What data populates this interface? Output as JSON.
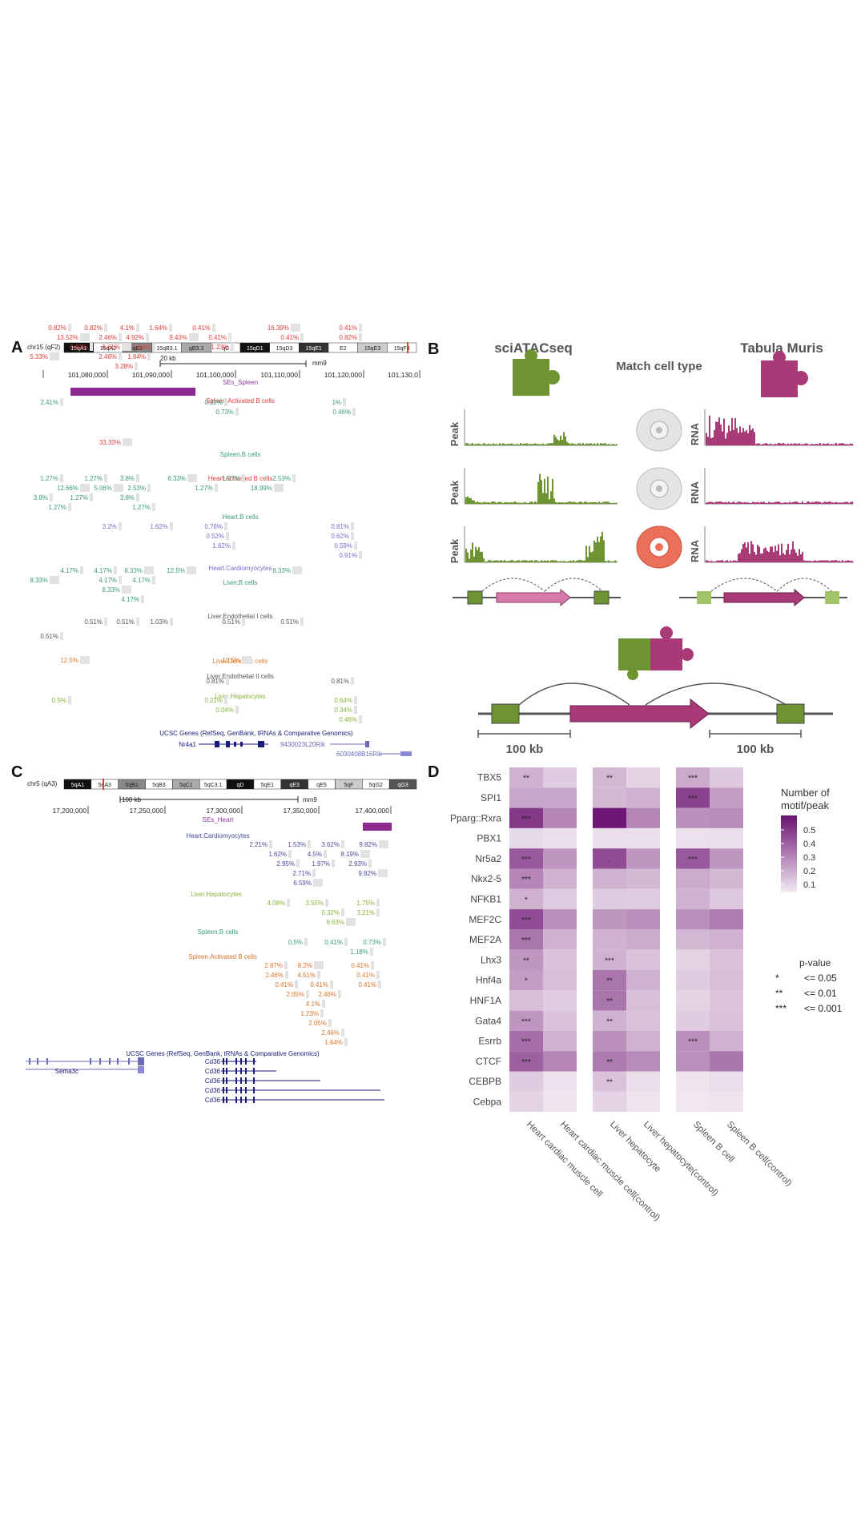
{
  "panelA": {
    "letter": "A",
    "chrom": "chr15 (qF2)",
    "bands": [
      "15qA1",
      "15qA2",
      "qB1",
      "15qB3.1",
      "qB3.3",
      "qC",
      "15qD1",
      "15qD3",
      "15qE1",
      "E2",
      "15qE3",
      "15qF3"
    ],
    "scale_label": "20 kb",
    "assembly": "mm9",
    "coords": [
      "101,080,000",
      "101,090,000",
      "101,100,000",
      "101,110,000",
      "101,120,000",
      "101,130,0"
    ],
    "se_label": "SEs_Spleen",
    "tracks": [
      {
        "name": "Spleen.Activated B cells",
        "color": "#e03b3b",
        "values": [
          [
            "0.82%",
            55,
            412
          ],
          [
            "0.82%",
            100,
            412
          ],
          [
            "4.1%",
            140,
            412
          ],
          [
            "1.64%",
            181,
            412
          ],
          [
            "0.41%",
            235,
            412
          ],
          [
            "16.39%",
            333,
            412
          ],
          [
            "0.41%",
            418,
            412
          ],
          [
            "13.52%",
            70,
            424
          ],
          [
            "2.46%",
            118,
            424
          ],
          [
            "4.92%",
            152,
            424
          ],
          [
            "9.43%",
            206,
            424
          ],
          [
            "0.41%",
            255,
            424
          ],
          [
            "0.41%",
            345,
            424
          ],
          [
            "0.82%",
            418,
            424
          ],
          [
            "0.82%",
            82,
            436
          ],
          [
            "8.61%",
            122,
            436
          ],
          [
            "1.64%",
            160,
            436
          ],
          [
            "1.23%",
            258,
            436
          ],
          [
            "5.33%",
            32,
            448
          ],
          [
            "2.46%",
            118,
            448
          ],
          [
            "1.64%",
            154,
            448
          ],
          [
            "3.28%",
            138,
            460
          ]
        ]
      },
      {
        "name": "Spleen.B cells",
        "color": "#3a9a7a",
        "values": [
          [
            "2.41%",
            45,
            505
          ],
          [
            "0.32%",
            250,
            505
          ],
          [
            "1%",
            398,
            505
          ],
          [
            "0.73%",
            264,
            517
          ],
          [
            "0.46%",
            410,
            517
          ]
        ]
      },
      {
        "name": "Heart.Activated B cells",
        "color": "#e03b3b",
        "values": [
          [
            "33.33%",
            123,
            555
          ]
        ]
      },
      {
        "name": "Heart.B cells",
        "color": "#3a9a7a",
        "values": [
          [
            "1.27%",
            45,
            600
          ],
          [
            "1.27%",
            100,
            600
          ],
          [
            "3.8%",
            140,
            600
          ],
          [
            "6.33%",
            204,
            600
          ],
          [
            "1.27%",
            272,
            600
          ],
          [
            "2.53%",
            335,
            600
          ],
          [
            "12.66%",
            70,
            612
          ],
          [
            "5.06%",
            112,
            612
          ],
          [
            "2.53%",
            154,
            612
          ],
          [
            "1.27%",
            238,
            612
          ],
          [
            "18.99%",
            312,
            612
          ],
          [
            "3.8%",
            32,
            624
          ],
          [
            "1.27%",
            82,
            624
          ],
          [
            "3.8%",
            140,
            624
          ],
          [
            "1.27%",
            55,
            636
          ],
          [
            "1.27%",
            160,
            636
          ]
        ]
      },
      {
        "name": "Heart.Cardiomyocytes",
        "color": "#7b68c8",
        "values": [
          [
            "3.2%",
            118,
            660
          ],
          [
            "1.62%",
            182,
            660
          ],
          [
            "0.76%",
            250,
            660
          ],
          [
            "0.81%",
            408,
            660
          ],
          [
            "0.52%",
            252,
            672
          ],
          [
            "0.62%",
            408,
            672
          ],
          [
            "1.62%",
            260,
            684
          ],
          [
            "0.59%",
            412,
            684
          ],
          [
            "0.91%",
            418,
            696
          ]
        ]
      },
      {
        "name": "Liver.B cells",
        "color": "#3a9a7a",
        "values": [
          [
            "4.17%",
            70,
            715
          ],
          [
            "4.17%",
            112,
            715
          ],
          [
            "8.33%",
            150,
            715
          ],
          [
            "12.5%",
            203,
            715
          ],
          [
            "8.33%",
            335,
            715
          ],
          [
            "8.33%",
            32,
            727
          ],
          [
            "4.17%",
            118,
            727
          ],
          [
            "4.17%",
            160,
            727
          ],
          [
            "8.33%",
            122,
            739
          ],
          [
            "4.17%",
            146,
            751
          ]
        ]
      },
      {
        "name": "Liver.Endothelial I cells",
        "color": "#555555",
        "values": [
          [
            "0.51%",
            100,
            779
          ],
          [
            "0.51%",
            140,
            779
          ],
          [
            "1.03%",
            182,
            779
          ],
          [
            "0.51%",
            272,
            779
          ],
          [
            "0.51%",
            345,
            779
          ],
          [
            "0.51%",
            45,
            797
          ]
        ]
      },
      {
        "name": "Liver.Dendritic cells",
        "color": "#e07b2c",
        "values": [
          [
            "12.5%",
            70,
            827
          ],
          [
            "12.5%",
            272,
            827
          ]
        ]
      },
      {
        "name": "Liver.Endothelial II cells",
        "color": "#555555",
        "values": [
          [
            "0.81%",
            252,
            853
          ],
          [
            "0.81%",
            408,
            853
          ]
        ]
      },
      {
        "name": "Liver.Hepatocytes",
        "color": "#8ab43a",
        "values": [
          [
            "0.5%",
            55,
            877
          ],
          [
            "0.21%",
            250,
            877
          ],
          [
            "0.64%",
            412,
            877
          ],
          [
            "0.04%",
            264,
            889
          ],
          [
            "0.34%",
            412,
            889
          ],
          [
            "0.46%",
            418,
            901
          ]
        ]
      }
    ],
    "genes_title": "UCSC Genes (RefSeq, GenBank, tRNAs & Comparative Genomics)",
    "genes": [
      "Nr4a1",
      "9430023L20Rik",
      "6030408B16Rik"
    ]
  },
  "panelB": {
    "letter": "B",
    "left_title": "sciATACseq",
    "right_title": "Tabula Muris",
    "middle": "Match cell type",
    "peak_label": "Peak",
    "rna_label": "RNA",
    "dist1": "100 kb",
    "dist2": "100 kb",
    "colors": {
      "green": "#6e9432",
      "magenta": "#a83a78",
      "pink": "#d57aab",
      "salmon": "#ec6f5a"
    }
  },
  "panelC": {
    "letter": "C",
    "chrom": "chr5 (qA3)",
    "bands": [
      "5qA1",
      "5qA3",
      "5qB1",
      "5qB3",
      "5qC1",
      "5qC3.1",
      "qD",
      "5qE1",
      "qE3",
      "qE5",
      "5qF",
      "5qG2",
      "qG3"
    ],
    "scale_label": "100 kb",
    "assembly": "mm9",
    "coords": [
      "17,200,000",
      "17,250,000",
      "17,300,000",
      "17,350,000",
      "17,400,000"
    ],
    "se_label": "SEs_Heart",
    "tracks": [
      {
        "name": "Heart.Cardiomyocytes",
        "color": "#4a4aa0",
        "values": [
          [
            "2.21%",
            306,
            1057
          ],
          [
            "1.53%",
            354,
            1057
          ],
          [
            "3.62%",
            396,
            1057
          ],
          [
            "9.82%",
            443,
            1057
          ],
          [
            "1.62%",
            330,
            1069
          ],
          [
            "4.5%",
            374,
            1069
          ],
          [
            "8.19%",
            420,
            1069
          ],
          [
            "2.95%",
            340,
            1081
          ],
          [
            "1.97%",
            384,
            1081
          ],
          [
            "2.93%",
            430,
            1081
          ],
          [
            "2.71%",
            360,
            1093
          ],
          [
            "9.82%",
            442,
            1093
          ],
          [
            "6.59%",
            361,
            1105
          ]
        ]
      },
      {
        "name": "Liver.Hepatocytes",
        "color": "#8ab43a",
        "values": [
          [
            "4.08%",
            328,
            1130
          ],
          [
            "3.55%",
            376,
            1130
          ],
          [
            "1.75%",
            440,
            1130
          ],
          [
            "0.32%",
            396,
            1142
          ],
          [
            "3.21%",
            440,
            1142
          ],
          [
            "6.63%",
            402,
            1154
          ]
        ]
      },
      {
        "name": "Spleen.B cells",
        "color": "#3a9a7a",
        "values": [
          [
            "0.5%",
            350,
            1179
          ],
          [
            "0.41%",
            400,
            1179
          ],
          [
            "0.73%",
            448,
            1179
          ],
          [
            "1.18%",
            432,
            1191
          ]
        ]
      },
      {
        "name": "Spleen.Activated B cells",
        "color": "#d8742c",
        "values": [
          [
            "2.87%",
            325,
            1208
          ],
          [
            "8.2%",
            362,
            1208
          ],
          [
            "0.41%",
            433,
            1208
          ],
          [
            "2.46%",
            326,
            1220
          ],
          [
            "4.51%",
            366,
            1220
          ],
          [
            "0.41%",
            440,
            1220
          ],
          [
            "0.41%",
            338,
            1232
          ],
          [
            "0.41%",
            382,
            1232
          ],
          [
            "0.41%",
            442,
            1232
          ],
          [
            "2.05%",
            352,
            1244
          ],
          [
            "2.46%",
            392,
            1244
          ],
          [
            "4.1%",
            372,
            1256
          ],
          [
            "1.23%",
            370,
            1268
          ],
          [
            "2.05%",
            380,
            1280
          ],
          [
            "2.46%",
            396,
            1292
          ],
          [
            "1.64%",
            400,
            1304
          ]
        ]
      }
    ],
    "genes_title": "UCSC Genes (RefSeq, GenBank, tRNAs & Comparative Genomics)",
    "genes": [
      "Sema3c",
      "Cd36",
      "Cd36",
      "Cd36",
      "Cd36",
      "Cd36"
    ]
  },
  "panelD": {
    "letter": "D",
    "type": "heatmap",
    "rows": [
      "TBX5",
      "SPI1",
      "Pparg::Rxra",
      "PBX1",
      "Nr5a2",
      "Nkx2-5",
      "NFKB1",
      "MEF2C",
      "MEF2A",
      "Lhx3",
      "Hnf4a",
      "HNF1A",
      "Gata4",
      "Esrrb",
      "CTCF",
      "CEBPB",
      "Cebpa"
    ],
    "columns": [
      "Heart cardiac muscle cell",
      "Heart cardiac muscle cell(control)",
      "Liver hepatocyte",
      "Liver hepatocyte(control)",
      "Spleen B cell",
      "Spleen B cell(control)"
    ],
    "values": [
      [
        0.22,
        0.14,
        0.2,
        0.12,
        0.24,
        0.15
      ],
      [
        0.25,
        0.25,
        0.2,
        0.22,
        0.55,
        0.28
      ],
      [
        0.58,
        0.35,
        0.68,
        0.35,
        0.32,
        0.33
      ],
      [
        0.1,
        0.09,
        0.09,
        0.09,
        0.08,
        0.09
      ],
      [
        0.48,
        0.3,
        0.52,
        0.3,
        0.48,
        0.3
      ],
      [
        0.35,
        0.22,
        0.22,
        0.2,
        0.24,
        0.2
      ],
      [
        0.22,
        0.14,
        0.14,
        0.14,
        0.22,
        0.15
      ],
      [
        0.52,
        0.32,
        0.3,
        0.32,
        0.32,
        0.38
      ],
      [
        0.4,
        0.22,
        0.22,
        0.24,
        0.2,
        0.22
      ],
      [
        0.3,
        0.17,
        0.22,
        0.17,
        0.12,
        0.17
      ],
      [
        0.28,
        0.18,
        0.4,
        0.22,
        0.14,
        0.18
      ],
      [
        0.18,
        0.14,
        0.4,
        0.18,
        0.12,
        0.16
      ],
      [
        0.3,
        0.17,
        0.22,
        0.17,
        0.14,
        0.17
      ],
      [
        0.42,
        0.22,
        0.32,
        0.22,
        0.32,
        0.22
      ],
      [
        0.46,
        0.35,
        0.38,
        0.33,
        0.32,
        0.4
      ],
      [
        0.14,
        0.08,
        0.17,
        0.09,
        0.07,
        0.09
      ],
      [
        0.12,
        0.07,
        0.12,
        0.07,
        0.06,
        0.07
      ]
    ],
    "stars": [
      [
        "**",
        "",
        "**",
        "",
        "***",
        ""
      ],
      [
        "",
        "",
        "",
        "",
        "***",
        ""
      ],
      [
        "***",
        "",
        "",
        "",
        "",
        ""
      ],
      [
        "",
        "",
        "",
        "",
        "",
        ""
      ],
      [
        "***",
        "",
        ".",
        "",
        "***",
        ""
      ],
      [
        "***",
        "",
        "",
        "",
        "",
        ""
      ],
      [
        "*",
        "",
        "",
        "",
        "",
        ""
      ],
      [
        "***",
        "",
        "",
        "",
        "",
        ""
      ],
      [
        "***",
        "",
        "",
        "",
        "",
        ""
      ],
      [
        "**",
        "",
        "***",
        "",
        "",
        ""
      ],
      [
        "*",
        "",
        "**",
        "",
        "",
        ""
      ],
      [
        "",
        "",
        "**",
        "",
        "",
        ""
      ],
      [
        "***",
        "",
        "**",
        "",
        "",
        ""
      ],
      [
        "***",
        "",
        "",
        "",
        "***",
        ""
      ],
      [
        "***",
        "",
        "**",
        "",
        "",
        ""
      ],
      [
        "",
        "",
        "**",
        "",
        "",
        ""
      ],
      [
        "",
        "",
        "",
        "",
        "",
        ""
      ]
    ],
    "legend_title": [
      "Number of",
      "motif/peak"
    ],
    "legend_ticks": [
      "0.5",
      "0.4",
      "0.3",
      "0.2",
      "0.1"
    ],
    "pvalue_title": "p-value",
    "pvalue_rows": [
      [
        "*",
        "<= 0.05"
      ],
      [
        "**",
        "<= 0.01"
      ],
      [
        "***",
        "<= 0.001"
      ]
    ],
    "colors": {
      "low": "#f3eaf2",
      "high": "#6a1070"
    }
  }
}
